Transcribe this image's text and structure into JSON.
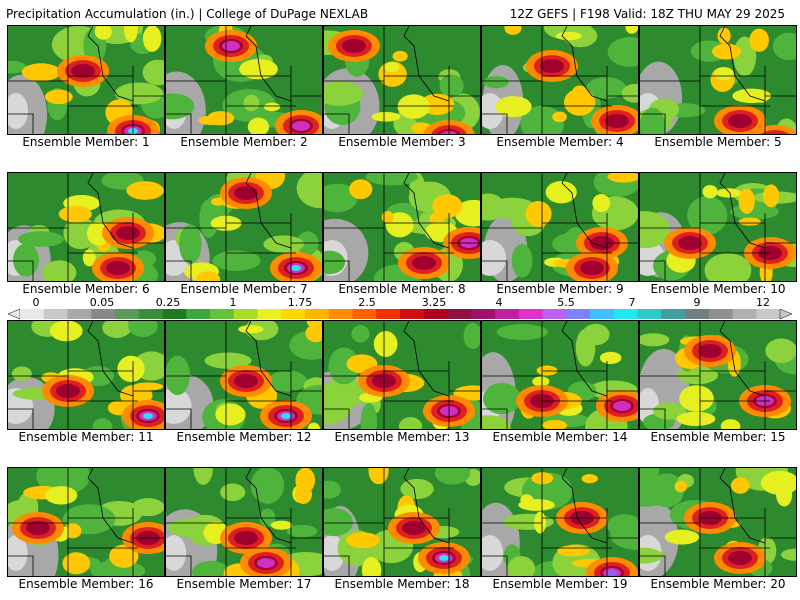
{
  "header": {
    "title": "Precipitation Accumulation (in.) | College of DuPage NEXLAB",
    "run_info": "12Z GEFS | F198 Valid: 18Z THU MAY 29 2025"
  },
  "member_label_prefix": "Ensemble Member: ",
  "members": [
    {
      "label": "Ensemble Member: 1"
    },
    {
      "label": "Ensemble Member: 2"
    },
    {
      "label": "Ensemble Member: 3"
    },
    {
      "label": "Ensemble Member: 4"
    },
    {
      "label": "Ensemble Member: 5"
    },
    {
      "label": "Ensemble Member: 6"
    },
    {
      "label": "Ensemble Member: 7"
    },
    {
      "label": "Ensemble Member: 8"
    },
    {
      "label": "Ensemble Member: 9"
    },
    {
      "label": "Ensemble Member: 10"
    },
    {
      "label": "Ensemble Member: 11"
    },
    {
      "label": "Ensemble Member: 12"
    },
    {
      "label": "Ensemble Member: 13"
    },
    {
      "label": "Ensemble Member: 14"
    },
    {
      "label": "Ensemble Member: 15"
    },
    {
      "label": "Ensemble Member: 16"
    },
    {
      "label": "Ensemble Member: 17"
    },
    {
      "label": "Ensemble Member: 18"
    },
    {
      "label": "Ensemble Member: 19"
    },
    {
      "label": "Ensemble Member: 20"
    }
  ],
  "colorbar": {
    "tick_labels": [
      "0",
      "0.05",
      "0.25",
      "1",
      "1.75",
      "2.5",
      "3.25",
      "4",
      "5.5",
      "7",
      "9",
      "12"
    ],
    "colors": [
      "#e8e8e8",
      "#c8c8c8",
      "#a8a8a8",
      "#888888",
      "#5a9a5a",
      "#3c8c3c",
      "#1e7a1e",
      "#3aa83a",
      "#66c23a",
      "#a8dc28",
      "#e8f020",
      "#ffd800",
      "#ffb400",
      "#ff8c00",
      "#ff6000",
      "#f03000",
      "#d01010",
      "#b00020",
      "#901040",
      "#a01070",
      "#c020a0",
      "#e030d0",
      "#c060f0",
      "#8080ff",
      "#40c0ff",
      "#20e8f0",
      "#30c8c8",
      "#40a0a0",
      "#708080",
      "#909090",
      "#b0b0b0",
      "#c8c8c8"
    ]
  },
  "map_palette": {
    "light": "#d8d8d8",
    "gray": "#a8a8a8",
    "darkgreen": "#2e8a2e",
    "green": "#4fb43c",
    "lightgreen": "#8cd23c",
    "yellow": "#e6f020",
    "gold": "#ffc800",
    "orange": "#ff8c00",
    "red": "#e02020",
    "darkred": "#a00030",
    "magenta": "#d030c0",
    "purple": "#9060f0",
    "cyan": "#30e0f0"
  }
}
